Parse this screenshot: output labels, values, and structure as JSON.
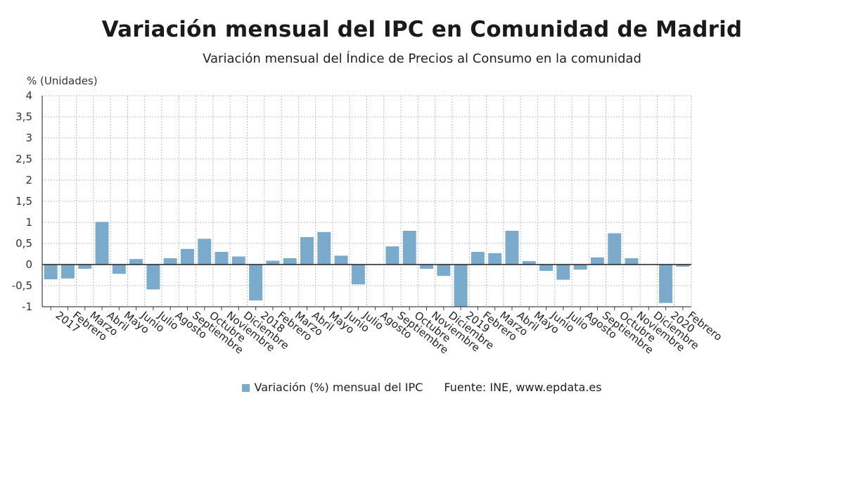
{
  "title": "Variación mensual del IPC en Comunidad de Madrid",
  "subtitle": "Variación mensual del Índice de Precios al Consumo en la comunidad",
  "legend": {
    "series_label": "Variación (%) mensual del IPC",
    "source": "Fuente: INE, www.epdata.es"
  },
  "chart_data": {
    "type": "bar",
    "ylabel": "% (Unidades)",
    "ylim": [
      -1,
      4
    ],
    "yticks": [
      "-1",
      "-0,5",
      "0",
      "0,5",
      "1",
      "1,5",
      "2",
      "2,5",
      "3",
      "3,5",
      "4"
    ],
    "grid": true,
    "legend_position": "bottom",
    "bar_color": "#7aaacc",
    "categories": [
      "2017",
      "Febrero",
      "Marzo",
      "Abril",
      "Mayo",
      "Junio",
      "Julio",
      "Agosto",
      "Septiembre",
      "Octubre",
      "Noviembre",
      "Diciembre",
      "2018",
      "Febrero",
      "Marzo",
      "Abril",
      "Mayo",
      "Junio",
      "Julio",
      "Agosto",
      "Septiembre",
      "Octubre",
      "Noviembre",
      "Diciembre",
      "2019",
      "Febrero",
      "Marzo",
      "Abril",
      "Mayo",
      "Junio",
      "Julio",
      "Agosto",
      "Septiembre",
      "Octubre",
      "Noviembre",
      "Diciembre",
      "2020",
      "Febrero"
    ],
    "series": [
      {
        "name": "Variación (%) mensual del IPC",
        "values": [
          -0.35,
          -0.33,
          -0.1,
          1.01,
          -0.22,
          0.13,
          -0.59,
          0.15,
          0.37,
          0.61,
          0.3,
          0.19,
          -0.85,
          0.09,
          0.15,
          0.65,
          0.77,
          0.21,
          -0.47,
          0.0,
          0.43,
          0.8,
          -0.1,
          -0.27,
          -1.0,
          0.3,
          0.27,
          0.8,
          0.08,
          -0.15,
          -0.36,
          -0.12,
          0.17,
          0.74,
          0.15,
          0.0,
          -0.91,
          -0.05
        ]
      }
    ]
  }
}
